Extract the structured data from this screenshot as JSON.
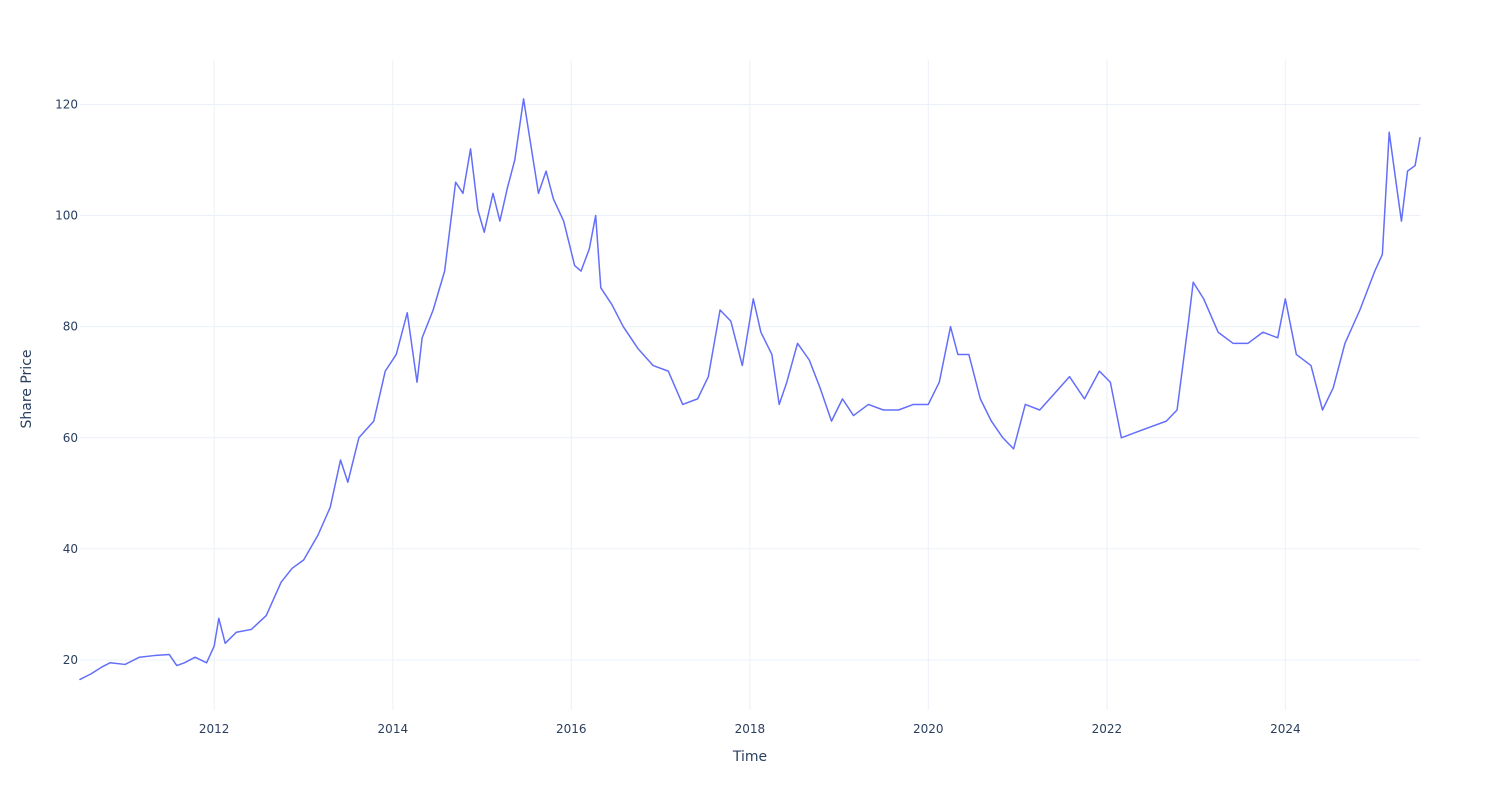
{
  "chart_data": {
    "type": "line",
    "xlabel": "Time",
    "ylabel": "Share Price",
    "x_type": "date",
    "xlim": [
      "2010-07-01",
      "2025-07-05"
    ],
    "ylim": [
      11,
      128
    ],
    "x_ticks": [
      "2012",
      "2014",
      "2016",
      "2018",
      "2020",
      "2022",
      "2024"
    ],
    "y_ticks": [
      20,
      40,
      60,
      80,
      100,
      120
    ],
    "grid": true,
    "legend": "none",
    "colors": {
      "line": "#636efa",
      "grid": "#ebf0f8",
      "text": "#2a3f5f",
      "background": "#ffffff"
    },
    "series": [
      {
        "color": "#636efa",
        "x": [
          "2010-07-01",
          "2010-08-15",
          "2010-10-01",
          "2010-11-01",
          "2011-01-01",
          "2011-03-01",
          "2011-05-01",
          "2011-07-01",
          "2011-08-01",
          "2011-09-01",
          "2011-10-15",
          "2011-12-01",
          "2012-01-01",
          "2012-01-20",
          "2012-02-15",
          "2012-04-01",
          "2012-06-01",
          "2012-08-01",
          "2012-10-01",
          "2012-11-15",
          "2013-01-01",
          "2013-03-01",
          "2013-04-20",
          "2013-06-01",
          "2013-07-01",
          "2013-08-15",
          "2013-10-15",
          "2013-12-01",
          "2014-01-15",
          "2014-03-01",
          "2014-04-10",
          "2014-05-01",
          "2014-06-15",
          "2014-08-01",
          "2014-09-15",
          "2014-10-15",
          "2014-11-15",
          "2014-12-15",
          "2015-01-10",
          "2015-02-15",
          "2015-03-15",
          "2015-04-15",
          "2015-05-15",
          "2015-06-20",
          "2015-07-15",
          "2015-08-20",
          "2015-09-20",
          "2015-10-20",
          "2015-12-01",
          "2016-01-15",
          "2016-02-10",
          "2016-03-15",
          "2016-04-10",
          "2016-05-01",
          "2016-06-15",
          "2016-08-01",
          "2016-10-01",
          "2016-12-01",
          "2017-02-01",
          "2017-04-01",
          "2017-06-01",
          "2017-07-15",
          "2017-09-01",
          "2017-10-15",
          "2017-12-01",
          "2018-01-15",
          "2018-02-15",
          "2018-04-01",
          "2018-05-01",
          "2018-06-01",
          "2018-07-15",
          "2018-09-01",
          "2018-10-15",
          "2018-12-01",
          "2019-01-15",
          "2019-03-01",
          "2019-05-01",
          "2019-07-01",
          "2019-09-01",
          "2019-11-01",
          "2020-01-01",
          "2020-02-15",
          "2020-04-01",
          "2020-05-01",
          "2020-06-15",
          "2020-08-01",
          "2020-09-15",
          "2020-11-01",
          "2020-12-15",
          "2021-02-01",
          "2021-04-01",
          "2021-06-01",
          "2021-08-01",
          "2021-10-01",
          "2021-12-01",
          "2022-01-15",
          "2022-03-01",
          "2022-05-01",
          "2022-07-01",
          "2022-09-01",
          "2022-10-15",
          "2022-12-01",
          "2022-12-20",
          "2023-02-01",
          "2023-04-01",
          "2023-06-01",
          "2023-08-01",
          "2023-10-01",
          "2023-12-01",
          "2024-01-01",
          "2024-02-15",
          "2024-04-15",
          "2024-06-01",
          "2024-07-15",
          "2024-09-01",
          "2024-11-01",
          "2025-01-01",
          "2025-02-01",
          "2025-03-01",
          "2025-04-01",
          "2025-04-20",
          "2025-05-15",
          "2025-06-15",
          "2025-07-05"
        ],
        "y": [
          16.5,
          17.5,
          18.8,
          19.5,
          19.2,
          20.5,
          20.8,
          21.0,
          19.0,
          19.5,
          20.5,
          19.5,
          22.5,
          27.5,
          23.0,
          25.0,
          25.5,
          28.0,
          34.0,
          36.5,
          38.0,
          42.5,
          47.5,
          56.0,
          52.0,
          60.0,
          63.0,
          72.0,
          75.0,
          82.5,
          70.0,
          78.0,
          83.0,
          90.0,
          106.0,
          104.0,
          112.0,
          101.0,
          97.0,
          104.0,
          99.0,
          105.0,
          110.0,
          121.0,
          114.0,
          104.0,
          108.0,
          103.0,
          99.0,
          91.0,
          90.0,
          94.0,
          100.0,
          87.0,
          84.0,
          80.0,
          76.0,
          73.0,
          72.0,
          66.0,
          67.0,
          71.0,
          83.0,
          81.0,
          73.0,
          85.0,
          79.0,
          75.0,
          66.0,
          70.0,
          77.0,
          74.0,
          69.0,
          63.0,
          67.0,
          64.0,
          66.0,
          65.0,
          65.0,
          66.0,
          66.0,
          70.0,
          80.0,
          75.0,
          75.0,
          67.0,
          63.0,
          60.0,
          58.0,
          66.0,
          65.0,
          68.0,
          71.0,
          67.0,
          72.0,
          70.0,
          60.0,
          61.0,
          62.0,
          63.0,
          65.0,
          81.0,
          88.0,
          85.0,
          79.0,
          77.0,
          77.0,
          79.0,
          78.0,
          85.0,
          75.0,
          73.0,
          65.0,
          69.0,
          77.0,
          83.0,
          90.0,
          93.0,
          115.0,
          105.0,
          99.0,
          108.0,
          109.0,
          114.0
        ]
      }
    ]
  }
}
